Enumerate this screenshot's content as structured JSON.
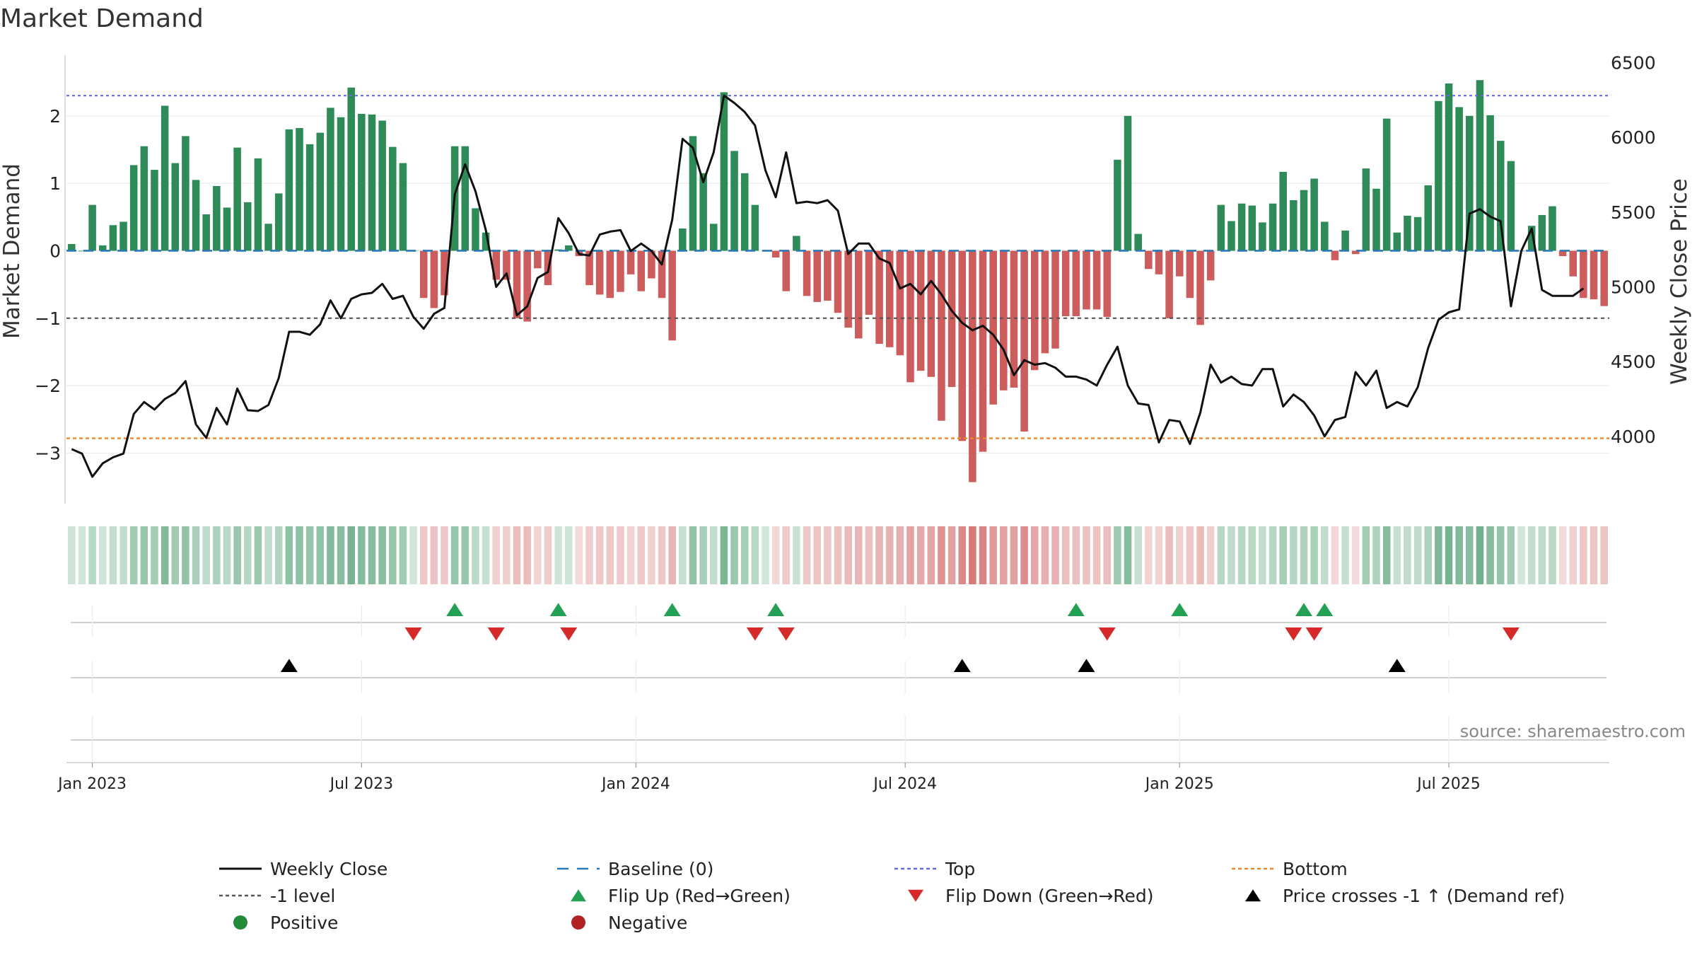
{
  "chart_data": {
    "type": "bar",
    "title": "Market Demand",
    "ylabel_left": "Market Demand",
    "ylabel_right": "Weekly Close Price",
    "ylim_left": [
      -3.75,
      2.9
    ],
    "ylim_right": [
      3550,
      6550
    ],
    "yticks_left": [
      2,
      1,
      0,
      -1,
      -2,
      -3
    ],
    "ytick_labels_left": [
      "2",
      "1",
      "0",
      "−1",
      "−2",
      "−3"
    ],
    "yticks_right": [
      6500,
      6000,
      5500,
      5000,
      4500,
      4000
    ],
    "ytick_labels_right": [
      "6500",
      "6000",
      "5500",
      "5000",
      "4500",
      "4000"
    ],
    "x_ticks": [
      {
        "label": "Jan 2023",
        "week": 2
      },
      {
        "label": "Jul 2023",
        "week": 28
      },
      {
        "label": "Jan 2024",
        "week": 54.5
      },
      {
        "label": "Jul 2024",
        "week": 80.5
      },
      {
        "label": "Jan 2025",
        "week": 107
      },
      {
        "label": "Jul 2025",
        "week": 133
      }
    ],
    "reference_lines": {
      "top": 2.3,
      "bottom": -2.78,
      "minus_one": -1,
      "baseline": 0
    },
    "demand": [
      0.1,
      0.0,
      0.68,
      0.08,
      0.38,
      0.43,
      1.27,
      1.55,
      1.2,
      2.15,
      1.3,
      1.7,
      1.05,
      0.54,
      0.96,
      0.64,
      1.53,
      0.72,
      1.37,
      0.4,
      0.85,
      1.8,
      1.82,
      1.58,
      1.75,
      2.12,
      1.98,
      2.42,
      2.03,
      2.02,
      1.93,
      1.54,
      1.3,
      0.0,
      -0.7,
      -0.85,
      -0.66,
      1.55,
      1.55,
      0.63,
      0.27,
      -0.43,
      -0.43,
      -1.0,
      -1.05,
      -0.26,
      -0.51,
      0.02,
      0.08,
      -0.08,
      -0.51,
      -0.65,
      -0.7,
      -0.61,
      -0.35,
      -0.6,
      -0.41,
      -0.7,
      -1.33,
      0.33,
      1.7,
      1.15,
      0.4,
      2.35,
      1.48,
      1.15,
      0.68,
      0.0,
      -0.1,
      -0.6,
      0.22,
      -0.67,
      -0.76,
      -0.74,
      -0.92,
      -1.14,
      -1.3,
      -0.95,
      -1.38,
      -1.43,
      -1.55,
      -1.95,
      -1.78,
      -1.87,
      -2.52,
      -2.02,
      -2.82,
      -3.43,
      -2.98,
      -2.28,
      -2.07,
      -2.03,
      -2.68,
      -1.77,
      -1.52,
      -1.45,
      -0.97,
      -0.97,
      -0.87,
      -0.87,
      -0.98,
      1.35,
      2.0,
      0.25,
      -0.27,
      -0.35,
      -1.0,
      -0.38,
      -0.7,
      -1.1,
      -0.44,
      0.68,
      0.44,
      0.7,
      0.67,
      0.42,
      0.7,
      1.17,
      0.75,
      0.9,
      1.07,
      0.43,
      -0.14,
      0.3,
      -0.05,
      1.22,
      0.92,
      1.96,
      0.27,
      0.52,
      0.5,
      0.97,
      2.22,
      2.48,
      2.13,
      2.0,
      2.53,
      2.01,
      1.63,
      1.33,
      0.0,
      0.37,
      0.53,
      0.66,
      -0.08,
      -0.38,
      -0.7,
      -0.72,
      -0.82
    ],
    "weekly_close": [
      3915,
      3885,
      3730,
      3820,
      3860,
      3885,
      4150,
      4230,
      4180,
      4250,
      4290,
      4370,
      4080,
      3990,
      4190,
      4080,
      4320,
      4175,
      4170,
      4210,
      4390,
      4700,
      4700,
      4680,
      4750,
      4910,
      4790,
      4920,
      4950,
      4960,
      5020,
      4920,
      4940,
      4800,
      4720,
      4820,
      4860,
      5620,
      5820,
      5640,
      5380,
      5000,
      5090,
      4810,
      4870,
      5060,
      5100,
      5460,
      5360,
      5220,
      5210,
      5350,
      5370,
      5380,
      5240,
      5290,
      5240,
      5150,
      5450,
      5990,
      5930,
      5700,
      5900,
      6280,
      6230,
      6170,
      6080,
      5780,
      5600,
      5900,
      5560,
      5570,
      5560,
      5580,
      5510,
      5220,
      5290,
      5290,
      5190,
      5160,
      4990,
      5020,
      4950,
      5040,
      4950,
      4840,
      4760,
      4710,
      4740,
      4680,
      4580,
      4410,
      4510,
      4480,
      4490,
      4460,
      4400,
      4400,
      4380,
      4340,
      4480,
      4600,
      4340,
      4220,
      4210,
      3960,
      4110,
      4100,
      3950,
      4160,
      4480,
      4360,
      4400,
      4350,
      4340,
      4450,
      4450,
      4200,
      4280,
      4230,
      4140,
      4000,
      4110,
      4130,
      4430,
      4340,
      4440,
      4190,
      4230,
      4200,
      4330,
      4590,
      4780,
      4830,
      4850,
      5490,
      5520,
      5470,
      5440,
      4870,
      5240,
      5390,
      4980,
      4940,
      4940,
      4940,
      4990
    ],
    "flip_up_weeks": [
      37,
      47,
      58,
      68,
      97,
      107,
      119,
      121
    ],
    "flip_down_weeks": [
      33,
      41,
      48,
      66,
      69,
      100,
      118,
      120,
      139
    ],
    "price_cross_weeks": [
      21,
      86,
      98,
      128
    ],
    "source": "source: sharemaestro.com",
    "legend": [
      {
        "label": "Weekly Close",
        "marker": "solid-line",
        "color": "#111111"
      },
      {
        "label": "Baseline (0)",
        "marker": "dashed-line",
        "color": "#2a78b6"
      },
      {
        "label": "Top",
        "marker": "dotted-line",
        "color": "#6b6bd1"
      },
      {
        "label": "Bottom",
        "marker": "dotted-line",
        "color": "#e8882a"
      },
      {
        "label": "-1 level",
        "marker": "dotted-line",
        "color": "#555555"
      },
      {
        "label": "Flip Up (Red→Green)",
        "marker": "triangle-up",
        "color": "#22a053"
      },
      {
        "label": "Flip Down (Green→Red)",
        "marker": "triangle-down",
        "color": "#d62a2a"
      },
      {
        "label": "Price crosses -1 ↑ (Demand ref)",
        "marker": "triangle-up",
        "color": "#000000"
      },
      {
        "label": "Positive",
        "marker": "circle",
        "color": "#228b3a"
      },
      {
        "label": "Negative",
        "marker": "circle",
        "color": "#b22222"
      }
    ],
    "colors": {
      "positive_bar": "#2e8b57",
      "negative_bar": "#cd5c5c",
      "price_line": "#111111",
      "baseline": "#2a78b6",
      "top_line": "#6b6bd1",
      "bottom_line": "#e8882a",
      "minus_one_line": "#555555",
      "flip_up": "#22a053",
      "flip_down": "#d62a2a",
      "cross": "#000000"
    }
  }
}
